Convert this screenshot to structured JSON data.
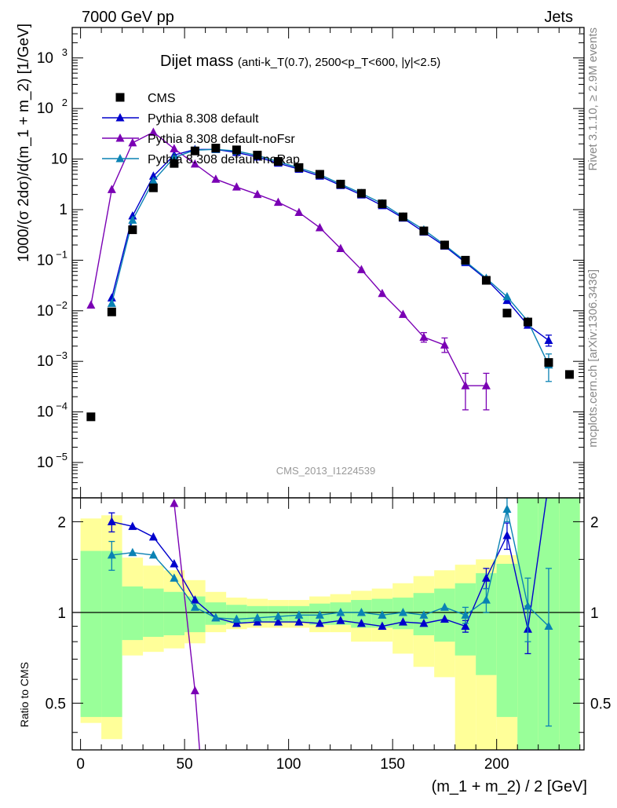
{
  "header": {
    "left": "7000 GeV pp",
    "right": "Jets"
  },
  "side_labels": {
    "rivet": "Rivet 3.1.10, ≥ 2.9M events",
    "mcplots": "mcplots.cern.ch [arXiv:1306.3436]"
  },
  "colors": {
    "cms": "#000000",
    "default": "#0000cc",
    "noFsr": "#7a00b4",
    "noRap": "#0a82b4",
    "band_green": "#99ff99",
    "band_yellow": "#ffff99"
  },
  "chart_data": [
    {
      "type": "line",
      "title": "Dijet mass",
      "title_detail": "(anti-k_T(0.7), 2500<p_T<600, |y|<2.5)",
      "ylabel": "1000/(σ 2dσ)/d(m_1 + m_2) [1/GeV]",
      "watermark": "CMS_2013_I1224539",
      "yscale": "log",
      "ylim": [
        2e-06,
        4000
      ],
      "xlim": [
        -4,
        242
      ],
      "yticks": [
        {
          "v": 1e-05,
          "m": "10",
          "e": "−5"
        },
        {
          "v": 0.0001,
          "m": "10",
          "e": "−4"
        },
        {
          "v": 0.001,
          "m": "10",
          "e": "−3"
        },
        {
          "v": 0.01,
          "m": "10",
          "e": "−2"
        },
        {
          "v": 0.1,
          "m": "10",
          "e": "−1"
        },
        {
          "v": 1,
          "m": "1",
          "e": ""
        },
        {
          "v": 10,
          "m": "10",
          "e": ""
        },
        {
          "v": 100,
          "m": "10",
          "e": "2"
        },
        {
          "v": 1000,
          "m": "10",
          "e": "3"
        }
      ],
      "legend_position": "top-left",
      "series": [
        {
          "name": "CMS",
          "marker": "square",
          "color": "#000000",
          "x": [
            5,
            15,
            25,
            35,
            45,
            55,
            65,
            75,
            85,
            95,
            105,
            115,
            125,
            135,
            145,
            155,
            165,
            175,
            185,
            195,
            205,
            215,
            225,
            235
          ],
          "y": [
            8e-05,
            0.0095,
            0.4,
            2.7,
            8.2,
            14.5,
            16.5,
            15.2,
            12,
            9,
            6.8,
            5,
            3.2,
            2.1,
            1.3,
            0.72,
            0.38,
            0.2,
            0.1,
            0.04,
            0.009,
            0.006,
            0.00095,
            0.00055
          ]
        },
        {
          "name": "Pythia 8.308 default",
          "marker": "triangle",
          "color": "#0000cc",
          "x": [
            15,
            25,
            35,
            45,
            55,
            65,
            75,
            85,
            95,
            105,
            115,
            125,
            135,
            145,
            155,
            165,
            175,
            185,
            195,
            205,
            215,
            225
          ],
          "y": [
            0.018,
            0.75,
            4.6,
            12,
            15.5,
            15.5,
            13.5,
            11,
            8.3,
            6.3,
            4.6,
            3,
            1.95,
            1.2,
            0.68,
            0.36,
            0.19,
            0.09,
            0.042,
            0.016,
            0.0052,
            0.0026
          ],
          "err": [
            null,
            null,
            null,
            null,
            null,
            null,
            null,
            null,
            null,
            null,
            null,
            null,
            null,
            null,
            null,
            null,
            null,
            null,
            null,
            null,
            null,
            [
              0.002,
              0.0033
            ]
          ]
        },
        {
          "name": "Pythia 8.308 default-noFsr",
          "marker": "triangle",
          "color": "#7a00b4",
          "x": [
            5,
            15,
            25,
            35,
            45,
            55,
            65,
            75,
            85,
            95,
            105,
            115,
            125,
            135,
            145,
            155,
            165,
            175,
            185,
            195
          ],
          "y": [
            0.013,
            2.5,
            21,
            34,
            16,
            8,
            4,
            2.8,
            2,
            1.4,
            0.88,
            0.44,
            0.17,
            0.065,
            0.022,
            0.0085,
            0.003,
            0.0021,
            0.00033,
            0.00033
          ],
          "err": [
            null,
            null,
            null,
            null,
            null,
            null,
            null,
            null,
            null,
            null,
            null,
            null,
            null,
            null,
            null,
            null,
            [
              0.0024,
              0.0037
            ],
            [
              0.0015,
              0.0029
            ],
            [
              0.00011,
              0.00058
            ],
            [
              0.00011,
              0.00058
            ]
          ]
        },
        {
          "name": "Pythia 8.308 default-noRap",
          "marker": "triangle",
          "color": "#0a82b4",
          "x": [
            15,
            25,
            35,
            45,
            55,
            65,
            75,
            85,
            95,
            105,
            115,
            125,
            135,
            145,
            155,
            165,
            175,
            185,
            195,
            205,
            215,
            225
          ],
          "y": [
            0.014,
            0.62,
            3.7,
            10.8,
            15,
            15.6,
            14.4,
            11.8,
            8.9,
            6.7,
            4.95,
            3.2,
            2.1,
            1.32,
            0.72,
            0.4,
            0.2,
            0.095,
            0.044,
            0.019,
            0.0062,
            0.00085
          ],
          "err": [
            null,
            null,
            null,
            null,
            null,
            null,
            null,
            null,
            null,
            null,
            null,
            null,
            null,
            null,
            null,
            null,
            null,
            null,
            null,
            null,
            null,
            [
              0.0004,
              0.0014
            ]
          ]
        }
      ]
    },
    {
      "type": "line",
      "xlabel": "(m_1 + m_2) / 2 [GeV]",
      "ylabel": "Ratio to CMS",
      "yscale": "log",
      "ylim": [
        0.35,
        2.4
      ],
      "xlim": [
        -4,
        242
      ],
      "yticks": [
        {
          "v": 0.5,
          "l": "0.5"
        },
        {
          "v": 1,
          "l": "1"
        },
        {
          "v": 2,
          "l": "2"
        }
      ],
      "xticks": [
        0,
        50,
        100,
        150,
        200
      ],
      "bands": {
        "edges": [
          0,
          10,
          20,
          30,
          40,
          50,
          60,
          70,
          80,
          90,
          100,
          110,
          120,
          130,
          140,
          150,
          160,
          170,
          180,
          190,
          200,
          210,
          220,
          230,
          240
        ],
        "yellow_lo": [
          0.43,
          0.38,
          0.72,
          0.74,
          0.76,
          0.79,
          0.86,
          0.88,
          0.89,
          0.89,
          0.89,
          0.86,
          0.86,
          0.8,
          0.8,
          0.73,
          0.66,
          0.61,
          0.35,
          0.35,
          0.35,
          0.35,
          0.35,
          0.35
        ],
        "yellow_hi": [
          2.05,
          2.1,
          1.52,
          1.43,
          1.38,
          1.28,
          1.17,
          1.12,
          1.11,
          1.1,
          1.1,
          1.13,
          1.15,
          1.18,
          1.2,
          1.25,
          1.32,
          1.38,
          1.44,
          1.5,
          1.55,
          1.6,
          2.4,
          2.4
        ],
        "green_lo": [
          0.45,
          0.45,
          0.81,
          0.83,
          0.84,
          0.86,
          0.91,
          0.92,
          0.93,
          0.93,
          0.93,
          0.91,
          0.91,
          0.89,
          0.89,
          0.88,
          0.84,
          0.8,
          0.72,
          0.62,
          0.45,
          0.35,
          0.35,
          0.35
        ],
        "green_hi": [
          1.6,
          1.6,
          1.22,
          1.2,
          1.17,
          1.13,
          1.08,
          1.06,
          1.05,
          1.05,
          1.05,
          1.07,
          1.08,
          1.1,
          1.11,
          1.12,
          1.16,
          1.2,
          1.25,
          1.35,
          1.45,
          2.4,
          2.4,
          2.4
        ]
      },
      "series": [
        {
          "name": "Pythia 8.308 default",
          "color": "#0000cc",
          "x": [
            15,
            25,
            35,
            45,
            55,
            65,
            75,
            85,
            95,
            105,
            115,
            125,
            135,
            145,
            155,
            165,
            175,
            185,
            195,
            205,
            215,
            225
          ],
          "y": [
            2.0,
            1.93,
            1.78,
            1.45,
            1.1,
            0.96,
            0.92,
            0.93,
            0.93,
            0.93,
            0.92,
            0.94,
            0.92,
            0.9,
            0.93,
            0.92,
            0.95,
            0.9,
            1.3,
            1.8,
            0.88,
            2.7
          ],
          "err": [
            [
              1.85,
              2.14
            ],
            null,
            null,
            null,
            null,
            null,
            null,
            null,
            null,
            null,
            null,
            null,
            null,
            null,
            null,
            null,
            null,
            [
              0.86,
              0.94
            ],
            [
              1.2,
              1.4
            ],
            [
              1.62,
              1.98
            ],
            [
              0.73,
              1.05
            ],
            null
          ]
        },
        {
          "name": "Pythia 8.308 default-noFsr",
          "color": "#7a00b4",
          "x": [
            45,
            55,
            60
          ],
          "y": [
            2.3,
            0.55,
            0.2
          ]
        },
        {
          "name": "Pythia 8.308 default-noRap",
          "color": "#0a82b4",
          "x": [
            15,
            25,
            35,
            45,
            55,
            65,
            75,
            85,
            95,
            105,
            115,
            125,
            135,
            145,
            155,
            165,
            175,
            185,
            195,
            205,
            215,
            225
          ],
          "y": [
            1.55,
            1.58,
            1.55,
            1.3,
            1.04,
            0.96,
            0.95,
            0.96,
            0.97,
            0.98,
            0.98,
            1.0,
            1.0,
            0.98,
            1.0,
            0.98,
            1.04,
            0.98,
            1.1,
            2.2,
            1.05,
            0.9
          ],
          "err": [
            [
              1.38,
              1.72
            ],
            null,
            null,
            null,
            null,
            null,
            null,
            null,
            null,
            null,
            null,
            null,
            null,
            null,
            null,
            null,
            null,
            [
              0.92,
              1.04
            ],
            [
              1.0,
              1.2
            ],
            [
              2.0,
              2.4
            ],
            [
              0.8,
              1.3
            ],
            [
              0.42,
              1.4
            ]
          ]
        }
      ]
    }
  ]
}
